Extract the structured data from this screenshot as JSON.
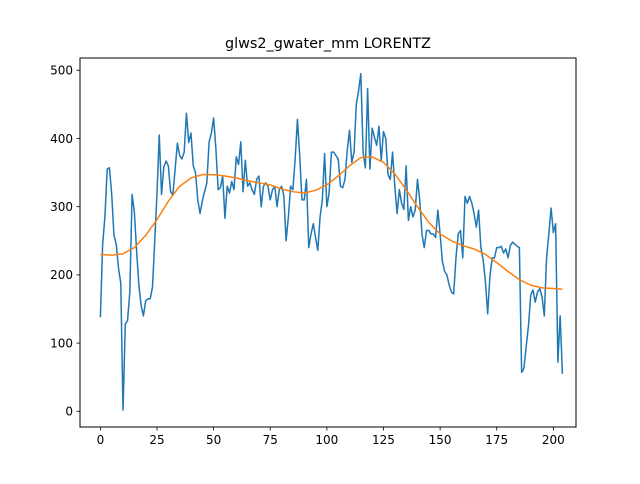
{
  "chart_data": {
    "type": "line",
    "title": "glws2_gwater_mm LORENTZ",
    "xlabel": "",
    "ylabel": "",
    "xlim": [
      -9,
      210
    ],
    "ylim": [
      -23,
      518
    ],
    "grid": false,
    "xticks": [
      0,
      25,
      50,
      75,
      100,
      125,
      150,
      175,
      200
    ],
    "yticks": [
      0,
      100,
      200,
      300,
      400,
      500
    ],
    "colors": {
      "raw": "#1f77b4",
      "smooth": "#ff7f0e"
    },
    "series": [
      {
        "values": [
          [
            0,
            138
          ],
          [
            1,
            245
          ],
          [
            2,
            285
          ],
          [
            3,
            355
          ],
          [
            4,
            357
          ],
          [
            5,
            318
          ],
          [
            6,
            258
          ],
          [
            7,
            245
          ],
          [
            8,
            210
          ],
          [
            9,
            188
          ],
          [
            10,
            2
          ],
          [
            11,
            128
          ],
          [
            12,
            133
          ],
          [
            13,
            175
          ],
          [
            14,
            318
          ],
          [
            15,
            292
          ],
          [
            16,
            235
          ],
          [
            17,
            185
          ],
          [
            18,
            155
          ],
          [
            19,
            140
          ],
          [
            20,
            162
          ],
          [
            21,
            165
          ],
          [
            22,
            165
          ],
          [
            23,
            182
          ],
          [
            24,
            250
          ],
          [
            25,
            320
          ],
          [
            26,
            405
          ],
          [
            27,
            318
          ],
          [
            28,
            358
          ],
          [
            29,
            367
          ],
          [
            30,
            360
          ],
          [
            31,
            322
          ],
          [
            32,
            317
          ],
          [
            33,
            355
          ],
          [
            34,
            393
          ],
          [
            35,
            375
          ],
          [
            36,
            370
          ],
          [
            37,
            380
          ],
          [
            38,
            437
          ],
          [
            39,
            394
          ],
          [
            40,
            408
          ],
          [
            41,
            360
          ],
          [
            42,
            350
          ],
          [
            43,
            310
          ],
          [
            44,
            290
          ],
          [
            45,
            308
          ],
          [
            46,
            322
          ],
          [
            47,
            335
          ],
          [
            48,
            395
          ],
          [
            49,
            408
          ],
          [
            50,
            430
          ],
          [
            51,
            385
          ],
          [
            52,
            325
          ],
          [
            53,
            328
          ],
          [
            54,
            345
          ],
          [
            55,
            283
          ],
          [
            56,
            330
          ],
          [
            57,
            320
          ],
          [
            58,
            337
          ],
          [
            59,
            325
          ],
          [
            60,
            373
          ],
          [
            61,
            362
          ],
          [
            62,
            395
          ],
          [
            63,
            322
          ],
          [
            64,
            368
          ],
          [
            65,
            330
          ],
          [
            66,
            335
          ],
          [
            67,
            325
          ],
          [
            68,
            318
          ],
          [
            69,
            340
          ],
          [
            70,
            345
          ],
          [
            71,
            300
          ],
          [
            72,
            330
          ],
          [
            73,
            335
          ],
          [
            74,
            330
          ],
          [
            75,
            310
          ],
          [
            76,
            325
          ],
          [
            77,
            330
          ],
          [
            78,
            300
          ],
          [
            79,
            325
          ],
          [
            80,
            330
          ],
          [
            81,
            316
          ],
          [
            82,
            250
          ],
          [
            83,
            285
          ],
          [
            84,
            330
          ],
          [
            85,
            325
          ],
          [
            86,
            370
          ],
          [
            87,
            428
          ],
          [
            88,
            375
          ],
          [
            89,
            310
          ],
          [
            90,
            310
          ],
          [
            91,
            340
          ],
          [
            92,
            240
          ],
          [
            93,
            260
          ],
          [
            94,
            275
          ],
          [
            95,
            255
          ],
          [
            96,
            236
          ],
          [
            97,
            285
          ],
          [
            98,
            310
          ],
          [
            99,
            378
          ],
          [
            100,
            300
          ],
          [
            101,
            320
          ],
          [
            102,
            380
          ],
          [
            103,
            380
          ],
          [
            104,
            375
          ],
          [
            105,
            370
          ],
          [
            106,
            330
          ],
          [
            107,
            328
          ],
          [
            108,
            340
          ],
          [
            109,
            383
          ],
          [
            110,
            412
          ],
          [
            111,
            365
          ],
          [
            112,
            380
          ],
          [
            113,
            450
          ],
          [
            114,
            470
          ],
          [
            115,
            495
          ],
          [
            116,
            380
          ],
          [
            117,
            357
          ],
          [
            118,
            473
          ],
          [
            119,
            355
          ],
          [
            120,
            415
          ],
          [
            121,
            402
          ],
          [
            122,
            390
          ],
          [
            123,
            418
          ],
          [
            124,
            368
          ],
          [
            125,
            410
          ],
          [
            126,
            400
          ],
          [
            127,
            347
          ],
          [
            128,
            340
          ],
          [
            129,
            380
          ],
          [
            130,
            330
          ],
          [
            131,
            290
          ],
          [
            132,
            325
          ],
          [
            133,
            305
          ],
          [
            134,
            296
          ],
          [
            135,
            360
          ],
          [
            136,
            280
          ],
          [
            137,
            300
          ],
          [
            138,
            285
          ],
          [
            139,
            295
          ],
          [
            140,
            340
          ],
          [
            141,
            310
          ],
          [
            142,
            260
          ],
          [
            143,
            240
          ],
          [
            144,
            265
          ],
          [
            145,
            265
          ],
          [
            146,
            260
          ],
          [
            147,
            260
          ],
          [
            148,
            255
          ],
          [
            149,
            295
          ],
          [
            150,
            260
          ],
          [
            151,
            220
          ],
          [
            152,
            205
          ],
          [
            153,
            200
          ],
          [
            154,
            185
          ],
          [
            155,
            175
          ],
          [
            156,
            172
          ],
          [
            157,
            225
          ],
          [
            158,
            260
          ],
          [
            159,
            265
          ],
          [
            160,
            225
          ],
          [
            161,
            315
          ],
          [
            162,
            305
          ],
          [
            163,
            315
          ],
          [
            164,
            305
          ],
          [
            165,
            290
          ],
          [
            166,
            270
          ],
          [
            167,
            295
          ],
          [
            168,
            240
          ],
          [
            169,
            222
          ],
          [
            170,
            190
          ],
          [
            171,
            143
          ],
          [
            172,
            198
          ],
          [
            173,
            225
          ],
          [
            174,
            225
          ],
          [
            175,
            240
          ],
          [
            176,
            240
          ],
          [
            177,
            242
          ],
          [
            178,
            232
          ],
          [
            179,
            238
          ],
          [
            180,
            225
          ],
          [
            181,
            243
          ],
          [
            182,
            248
          ],
          [
            183,
            245
          ],
          [
            184,
            242
          ],
          [
            185,
            240
          ],
          [
            186,
            57
          ],
          [
            187,
            63
          ],
          [
            188,
            95
          ],
          [
            189,
            125
          ],
          [
            190,
            170
          ],
          [
            191,
            178
          ],
          [
            192,
            160
          ],
          [
            193,
            175
          ],
          [
            194,
            180
          ],
          [
            195,
            168
          ],
          [
            196,
            140
          ],
          [
            197,
            225
          ],
          [
            198,
            260
          ],
          [
            199,
            298
          ],
          [
            200,
            262
          ],
          [
            201,
            275
          ],
          [
            202,
            72
          ],
          [
            203,
            140
          ],
          [
            204,
            55
          ]
        ]
      },
      {
        "values": [
          [
            0,
            230
          ],
          [
            5,
            229
          ],
          [
            10,
            231
          ],
          [
            15,
            240
          ],
          [
            20,
            258
          ],
          [
            25,
            281
          ],
          [
            30,
            308
          ],
          [
            35,
            330
          ],
          [
            40,
            342
          ],
          [
            45,
            347
          ],
          [
            50,
            347
          ],
          [
            55,
            345
          ],
          [
            60,
            342
          ],
          [
            65,
            338
          ],
          [
            70,
            335
          ],
          [
            75,
            332
          ],
          [
            80,
            326
          ],
          [
            85,
            322
          ],
          [
            90,
            320
          ],
          [
            95,
            324
          ],
          [
            100,
            332
          ],
          [
            105,
            345
          ],
          [
            110,
            360
          ],
          [
            115,
            372
          ],
          [
            120,
            373
          ],
          [
            125,
            365
          ],
          [
            130,
            348
          ],
          [
            135,
            325
          ],
          [
            140,
            300
          ],
          [
            145,
            277
          ],
          [
            150,
            260
          ],
          [
            155,
            250
          ],
          [
            160,
            243
          ],
          [
            165,
            238
          ],
          [
            170,
            230
          ],
          [
            175,
            218
          ],
          [
            180,
            205
          ],
          [
            185,
            193
          ],
          [
            190,
            185
          ],
          [
            195,
            181
          ],
          [
            200,
            180
          ],
          [
            204,
            179
          ]
        ]
      }
    ]
  }
}
